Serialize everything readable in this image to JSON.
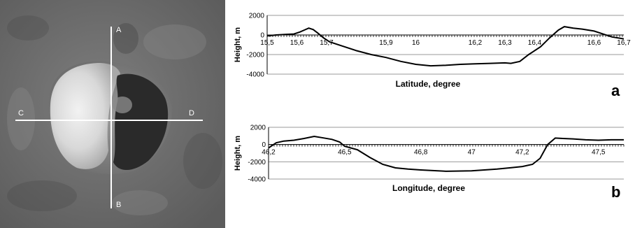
{
  "photo": {
    "labels": {
      "top": "A",
      "bottom": "B",
      "left": "C",
      "right": "D"
    }
  },
  "chart_data": [
    {
      "type": "line",
      "panel": "a",
      "xlabel": "Latitude, degree",
      "ylabel": "Height, m",
      "xlim": [
        15.5,
        16.7
      ],
      "ylim": [
        -4000,
        2000
      ],
      "xticks": [
        "15,5",
        "15,6",
        "15,7",
        "15,9",
        "16",
        "16,2",
        "16,3",
        "16,4",
        "16,6",
        "16,7"
      ],
      "yticks": [
        "2000",
        "0",
        "-2000",
        "-4000"
      ],
      "grid": true,
      "series": [
        {
          "x": [
            15.5,
            15.53,
            15.56,
            15.59,
            15.61,
            15.625,
            15.64,
            15.655,
            15.67,
            15.69,
            15.71,
            15.75,
            15.8,
            15.85,
            15.9,
            15.95,
            16.0,
            16.05,
            16.1,
            16.15,
            16.2,
            16.25,
            16.3,
            16.32,
            16.35,
            16.38,
            16.42,
            16.45,
            16.48,
            16.5,
            16.53,
            16.56,
            16.6,
            16.63,
            16.66,
            16.7
          ],
          "y": [
            -100,
            0,
            50,
            100,
            300,
            500,
            700,
            550,
            200,
            -300,
            -700,
            -1100,
            -1600,
            -2000,
            -2300,
            -2700,
            -3000,
            -3150,
            -3100,
            -3000,
            -2950,
            -2900,
            -2850,
            -2900,
            -2700,
            -2000,
            -1200,
            -300,
            500,
            850,
            700,
            600,
            400,
            100,
            -200,
            -400
          ]
        }
      ]
    },
    {
      "type": "line",
      "panel": "b",
      "xlabel": "Longitude, degree",
      "ylabel": "Height, m",
      "xlim": [
        46.2,
        47.6
      ],
      "ylim": [
        -4000,
        2000
      ],
      "xticks": [
        "46,2",
        "46,5",
        "46,8",
        "47",
        "47,2",
        "47,5"
      ],
      "yticks": [
        "2000",
        "0",
        "-2000",
        "-4000"
      ],
      "grid": true,
      "series": [
        {
          "x": [
            46.2,
            46.23,
            46.26,
            46.3,
            46.34,
            46.38,
            46.41,
            46.45,
            46.48,
            46.5,
            46.55,
            46.6,
            46.65,
            46.7,
            46.75,
            46.8,
            46.9,
            47.0,
            47.05,
            47.1,
            47.15,
            47.2,
            47.24,
            47.27,
            47.3,
            47.33,
            47.36,
            47.4,
            47.45,
            47.5,
            47.55,
            47.6
          ],
          "y": [
            -400,
            200,
            400,
            500,
            700,
            950,
            800,
            600,
            300,
            -200,
            -600,
            -1500,
            -2300,
            -2700,
            -2850,
            -2950,
            -3100,
            -3050,
            -2950,
            -2850,
            -2700,
            -2550,
            -2300,
            -1600,
            0,
            750,
            700,
            650,
            550,
            500,
            550,
            550
          ]
        }
      ]
    }
  ],
  "panel_labels": {
    "a": "a",
    "b": "b"
  }
}
